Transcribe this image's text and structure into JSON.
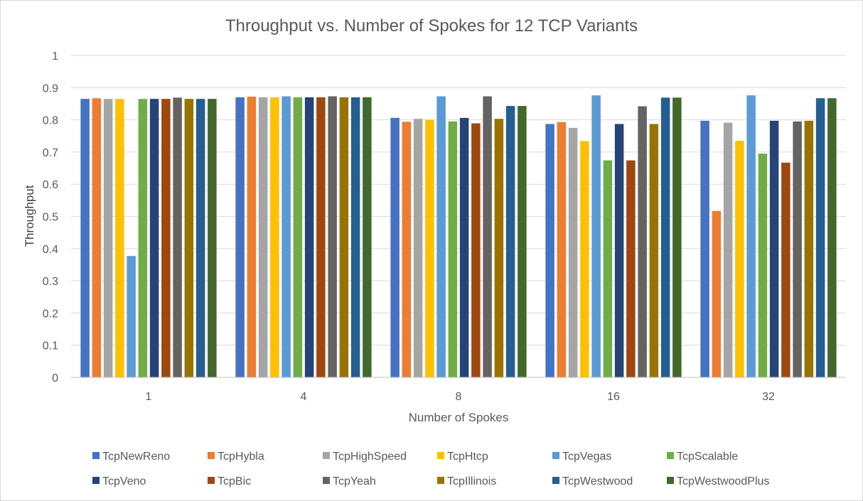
{
  "chart_data": {
    "type": "bar",
    "title": "Throughput vs. Number of Spokes for 12 TCP Variants",
    "xlabel": "Number of Spokes",
    "ylabel": "Throughput",
    "ylim": [
      0,
      1
    ],
    "yticks": [
      "0",
      "0.1",
      "0.2",
      "0.3",
      "0.4",
      "0.5",
      "0.6",
      "0.7",
      "0.8",
      "0.9",
      "1"
    ],
    "grid": true,
    "legend_position": "bottom",
    "categories": [
      "1",
      "4",
      "8",
      "16",
      "32"
    ],
    "series": [
      {
        "name": "TcpNewReno",
        "color": "#4472C4",
        "values": [
          0.865,
          0.87,
          0.806,
          0.787,
          0.797
        ]
      },
      {
        "name": "TcpHybla",
        "color": "#ED7D31",
        "values": [
          0.867,
          0.872,
          0.794,
          0.793,
          0.517
        ]
      },
      {
        "name": "TcpHighSpeed",
        "color": "#A5A5A5",
        "values": [
          0.865,
          0.87,
          0.803,
          0.775,
          0.791
        ]
      },
      {
        "name": "TcpHtcp",
        "color": "#FFC000",
        "values": [
          0.865,
          0.87,
          0.8,
          0.734,
          0.735
        ]
      },
      {
        "name": "TcpVegas",
        "color": "#5B9BD5",
        "values": [
          0.377,
          0.873,
          0.873,
          0.876,
          0.876
        ]
      },
      {
        "name": "TcpScalable",
        "color": "#70AD47",
        "values": [
          0.865,
          0.87,
          0.795,
          0.674,
          0.695
        ]
      },
      {
        "name": "TcpVeno",
        "color": "#264478",
        "values": [
          0.865,
          0.87,
          0.806,
          0.787,
          0.797
        ]
      },
      {
        "name": "TcpBic",
        "color": "#9E480E",
        "values": [
          0.865,
          0.87,
          0.789,
          0.674,
          0.667
        ]
      },
      {
        "name": "TcpYeah",
        "color": "#636363",
        "values": [
          0.869,
          0.873,
          0.873,
          0.842,
          0.795
        ]
      },
      {
        "name": "TcpIllinois",
        "color": "#997300",
        "values": [
          0.865,
          0.87,
          0.803,
          0.787,
          0.797
        ]
      },
      {
        "name": "TcpWestwood",
        "color": "#255E91",
        "values": [
          0.865,
          0.87,
          0.843,
          0.869,
          0.867
        ]
      },
      {
        "name": "TcpWestwoodPlus",
        "color": "#43682B",
        "values": [
          0.865,
          0.87,
          0.843,
          0.869,
          0.867
        ]
      }
    ]
  }
}
